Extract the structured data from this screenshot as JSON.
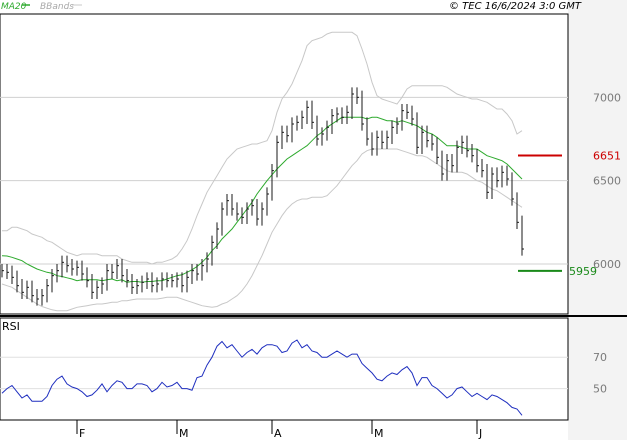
{
  "header": {
    "ma_label": "MA20",
    "bb_label": "BBands",
    "copyright": "© TEC 16/6/2024 3:0 GMT"
  },
  "rsi_label": "RSI",
  "colors": {
    "price": "#1a1a1a",
    "ma": "#2eaa2e",
    "bbands": "#c8c8c8",
    "rsi": "#1f2fbf",
    "resistance": "#cc0000",
    "support": "#1a8a1a",
    "grid": "#d0d0d0",
    "panel_bg": "#f3f3f3"
  },
  "chart_data": {
    "type": "line",
    "price_panel": {
      "y_ticks": [
        "7000",
        "6500",
        "6000"
      ],
      "y_tick_values": [
        7000,
        6500,
        6000
      ],
      "ylim": [
        5700,
        7500
      ],
      "levels": [
        {
          "name": "resistance",
          "value": 6651,
          "label": "6651"
        },
        {
          "name": "support",
          "value": 5959,
          "label": "5959"
        }
      ],
      "x_ticks": [
        "F",
        "M",
        "A",
        "M",
        "J"
      ],
      "x_tick_index": [
        15,
        35,
        54,
        74,
        95
      ],
      "n_bars": 105,
      "close": [
        5960,
        5950,
        5920,
        5870,
        5830,
        5860,
        5810,
        5790,
        5810,
        5870,
        5930,
        5960,
        6010,
        5990,
        5970,
        5980,
        5940,
        5900,
        5830,
        5860,
        5880,
        5960,
        5950,
        5990,
        5930,
        5900,
        5860,
        5870,
        5890,
        5910,
        5870,
        5880,
        5910,
        5900,
        5900,
        5910,
        5870,
        5920,
        5960,
        5940,
        5990,
        6030,
        6130,
        6210,
        6330,
        6380,
        6330,
        6300,
        6280,
        6330,
        6350,
        6270,
        6330,
        6420,
        6560,
        6730,
        6790,
        6770,
        6840,
        6850,
        6880,
        6940,
        6850,
        6750,
        6780,
        6820,
        6890,
        6900,
        6880,
        6910,
        7020,
        7000,
        6840,
        6750,
        6690,
        6760,
        6730,
        6760,
        6820,
        6840,
        6920,
        6910,
        6870,
        6700,
        6790,
        6740,
        6720,
        6640,
        6540,
        6620,
        6590,
        6700,
        6730,
        6680,
        6650,
        6590,
        6560,
        6430,
        6540,
        6500,
        6550,
        6510,
        6390,
        6250,
        6090
      ],
      "ma20": [
        6050,
        6048,
        6040,
        6030,
        6020,
        6000,
        5985,
        5970,
        5960,
        5950,
        5945,
        5930,
        5925,
        5917,
        5910,
        5900,
        5905,
        5905,
        5905,
        5905,
        5900,
        5905,
        5910,
        5900,
        5905,
        5890,
        5895,
        5895,
        5890,
        5895,
        5895,
        5900,
        5900,
        5910,
        5920,
        5930,
        5935,
        5950,
        5965,
        5985,
        6010,
        6040,
        6080,
        6110,
        6150,
        6180,
        6210,
        6250,
        6290,
        6330,
        6370,
        6420,
        6460,
        6500,
        6535,
        6570,
        6600,
        6630,
        6650,
        6670,
        6690,
        6710,
        6740,
        6770,
        6790,
        6820,
        6840,
        6860,
        6880,
        6880,
        6880,
        6880,
        6880,
        6870,
        6880,
        6880,
        6870,
        6860,
        6860,
        6850,
        6860,
        6850,
        6840,
        6830,
        6810,
        6790,
        6780,
        6760,
        6735,
        6710,
        6710,
        6710,
        6700,
        6690,
        6690,
        6690,
        6670,
        6650,
        6640,
        6630,
        6620,
        6600,
        6570,
        6540,
        6510
      ],
      "bb_upper": [
        6200,
        6200,
        6220,
        6220,
        6210,
        6200,
        6180,
        6170,
        6160,
        6140,
        6130,
        6110,
        6090,
        6070,
        6060,
        6050,
        6060,
        6060,
        6060,
        6060,
        6050,
        6050,
        6050,
        6050,
        6030,
        6020,
        6010,
        6010,
        6010,
        6010,
        6000,
        6010,
        6010,
        6020,
        6030,
        6050,
        6090,
        6140,
        6210,
        6290,
        6360,
        6430,
        6480,
        6530,
        6580,
        6630,
        6660,
        6690,
        6700,
        6710,
        6720,
        6720,
        6730,
        6740,
        6800,
        6910,
        6990,
        7030,
        7080,
        7150,
        7220,
        7310,
        7340,
        7350,
        7360,
        7380,
        7390,
        7390,
        7390,
        7390,
        7390,
        7370,
        7290,
        7200,
        7090,
        7010,
        6990,
        6980,
        6970,
        6960,
        7000,
        7050,
        7070,
        7070,
        7070,
        7070,
        7070,
        7070,
        7070,
        7060,
        7040,
        7020,
        7010,
        7000,
        6990,
        6990,
        6980,
        6970,
        6950,
        6930,
        6930,
        6900,
        6860,
        6780,
        6800
      ],
      "bb_lower": [
        5880,
        5870,
        5860,
        5840,
        5820,
        5800,
        5780,
        5760,
        5745,
        5735,
        5725,
        5720,
        5720,
        5720,
        5730,
        5740,
        5745,
        5750,
        5755,
        5760,
        5760,
        5765,
        5770,
        5770,
        5780,
        5780,
        5785,
        5790,
        5790,
        5790,
        5790,
        5790,
        5795,
        5800,
        5800,
        5800,
        5790,
        5780,
        5770,
        5760,
        5750,
        5745,
        5740,
        5745,
        5760,
        5770,
        5790,
        5810,
        5840,
        5880,
        5930,
        5990,
        6050,
        6120,
        6190,
        6240,
        6290,
        6330,
        6360,
        6380,
        6390,
        6390,
        6400,
        6400,
        6400,
        6410,
        6440,
        6470,
        6510,
        6550,
        6590,
        6620,
        6660,
        6680,
        6690,
        6690,
        6690,
        6690,
        6690,
        6690,
        6680,
        6670,
        6660,
        6650,
        6650,
        6640,
        6620,
        6600,
        6580,
        6560,
        6550,
        6550,
        6550,
        6540,
        6520,
        6500,
        6490,
        6470,
        6450,
        6440,
        6420,
        6400,
        6380,
        6360,
        6340
      ]
    },
    "rsi_panel": {
      "label": "RSI",
      "y_ticks": [
        "70",
        "50"
      ],
      "y_tick_values": [
        70,
        50
      ],
      "ylim": [
        30,
        95
      ],
      "values": [
        47,
        50,
        52,
        48,
        44,
        46,
        42,
        42,
        42,
        45,
        52,
        56,
        58,
        53,
        51,
        50,
        48,
        45,
        46,
        49,
        53,
        48,
        52,
        55,
        54,
        50,
        50,
        53,
        53,
        52,
        48,
        50,
        54,
        51,
        52,
        54,
        50,
        50,
        49,
        57,
        58,
        65,
        70,
        77,
        80,
        76,
        78,
        74,
        70,
        73,
        75,
        72,
        76,
        78,
        78,
        77,
        73,
        74,
        79,
        81,
        76,
        78,
        74,
        73,
        70,
        70,
        72,
        74,
        72,
        70,
        72,
        72,
        66,
        63,
        60,
        56,
        55,
        58,
        60,
        59,
        62,
        64,
        60,
        52,
        57,
        57,
        52,
        50,
        47,
        44,
        46,
        50,
        51,
        48,
        45,
        47,
        45,
        43,
        46,
        45,
        43,
        41,
        38,
        37,
        33
      ]
    }
  }
}
